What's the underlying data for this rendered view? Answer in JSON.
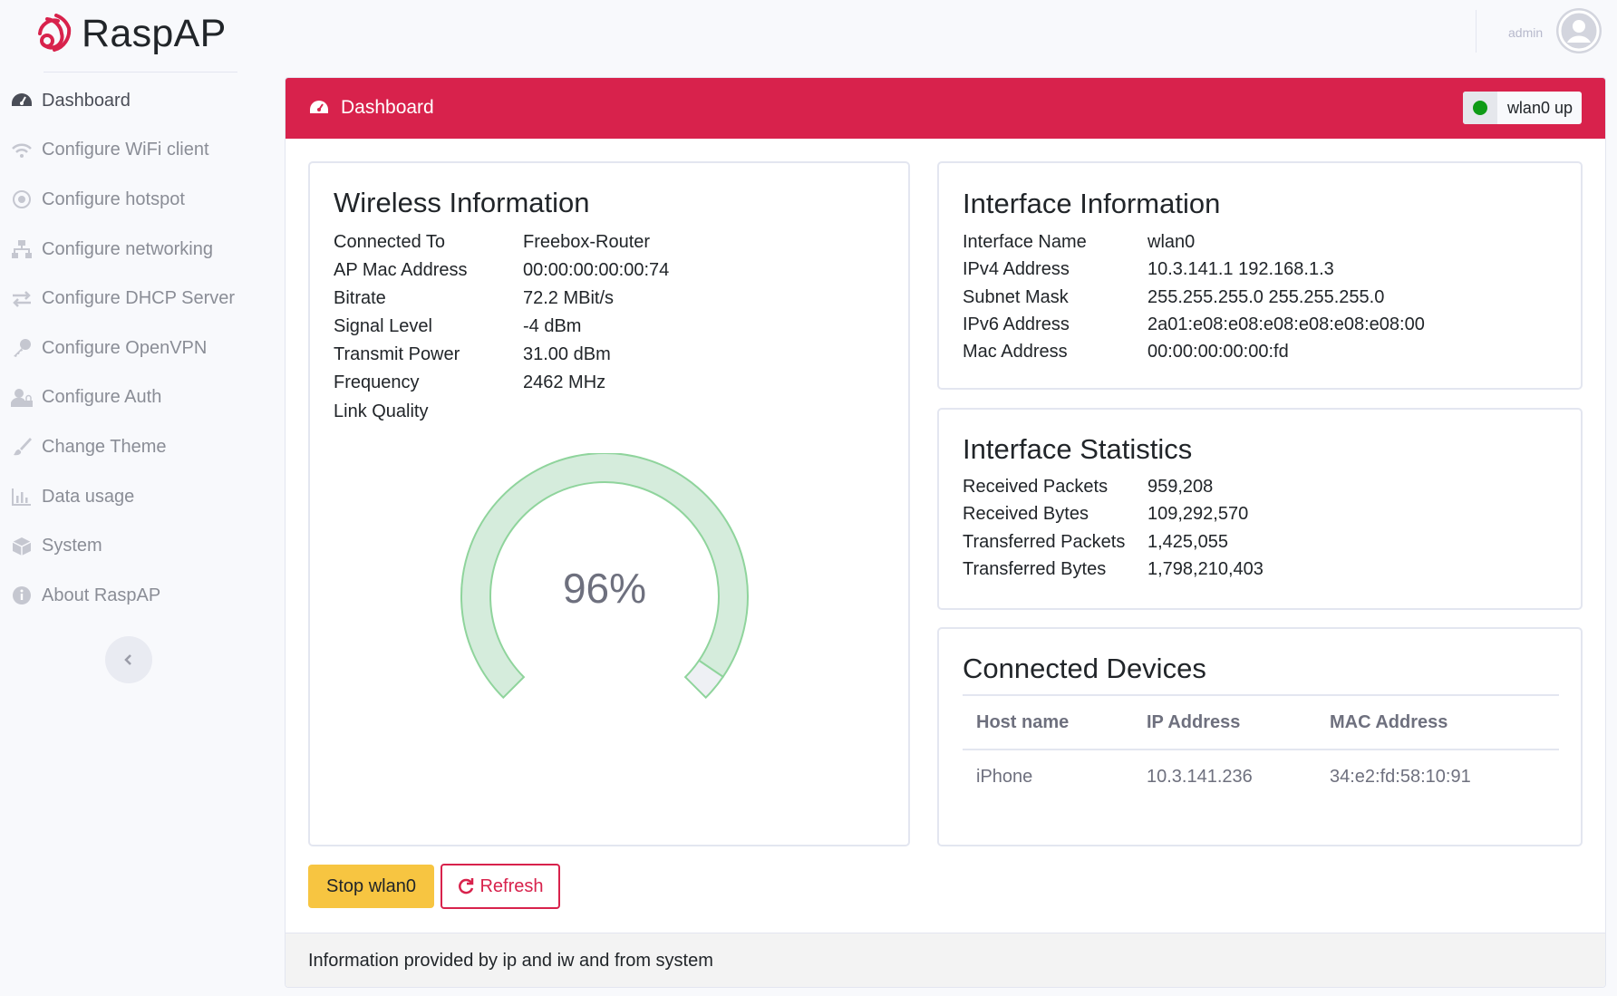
{
  "app": {
    "name": "RaspAP"
  },
  "colors": {
    "accent": "#d8224c",
    "status_ok": "#0f9b16",
    "warning": "#f7c541",
    "gauge_fill": "#d5ecdc",
    "gauge_stroke": "#8fd49c"
  },
  "sidebar": {
    "items": [
      {
        "label": "Dashboard",
        "icon": "tachometer-icon"
      },
      {
        "label": "Configure WiFi client",
        "icon": "wifi-icon"
      },
      {
        "label": "Configure hotspot",
        "icon": "dot-circle-icon"
      },
      {
        "label": "Configure networking",
        "icon": "network-icon"
      },
      {
        "label": "Configure DHCP Server",
        "icon": "exchange-icon"
      },
      {
        "label": "Configure OpenVPN",
        "icon": "key-icon"
      },
      {
        "label": "Configure Auth",
        "icon": "user-lock-icon"
      },
      {
        "label": "Change Theme",
        "icon": "paint-brush-icon"
      },
      {
        "label": "Data usage",
        "icon": "bar-chart-icon"
      },
      {
        "label": "System",
        "icon": "cube-icon"
      },
      {
        "label": "About RaspAP",
        "icon": "info-circle-icon"
      }
    ]
  },
  "topbar": {
    "user": "admin"
  },
  "header": {
    "title": "Dashboard",
    "status": "wlan0 up"
  },
  "wireless": {
    "title": "Wireless Information",
    "rows": [
      {
        "key": "Connected To",
        "value": "Freebox-Router"
      },
      {
        "key": "AP Mac Address",
        "value": "00:00:00:00:00:74"
      },
      {
        "key": "Bitrate",
        "value": "72.2 MBit/s"
      },
      {
        "key": "Signal Level",
        "value": "-4 dBm"
      },
      {
        "key": "Transmit Power",
        "value": "31.00 dBm"
      },
      {
        "key": "Frequency",
        "value": "2462 MHz"
      },
      {
        "key": "Link Quality",
        "value": ""
      }
    ],
    "link_quality": 96,
    "link_quality_label": "96%"
  },
  "interface": {
    "title": "Interface Information",
    "rows": [
      {
        "key": "Interface Name",
        "value": "wlan0"
      },
      {
        "key": "IPv4 Address",
        "value": "10.3.141.1 192.168.1.3"
      },
      {
        "key": "Subnet Mask",
        "value": "255.255.255.0 255.255.255.0"
      },
      {
        "key": "IPv6 Address",
        "value": "2a01:e08:e08:e08:e08:e08:e08:00"
      },
      {
        "key": "Mac Address",
        "value": "00:00:00:00:00:fd"
      }
    ]
  },
  "stats": {
    "title": "Interface Statistics",
    "rows": [
      {
        "key": "Received Packets",
        "value": "959,208"
      },
      {
        "key": "Received Bytes",
        "value": "109,292,570"
      },
      {
        "key": "Transferred Packets",
        "value": "1,425,055"
      },
      {
        "key": "Transferred Bytes",
        "value": "1,798,210,403"
      }
    ]
  },
  "devices": {
    "title": "Connected Devices",
    "columns": [
      "Host name",
      "IP Address",
      "MAC Address"
    ],
    "rows": [
      [
        "iPhone",
        "10.3.141.236",
        "34:e2:fd:58:10:91"
      ]
    ]
  },
  "buttons": {
    "stop": "Stop wlan0",
    "refresh": "Refresh"
  },
  "footer": {
    "text": "Information provided by ip and iw and from system"
  }
}
